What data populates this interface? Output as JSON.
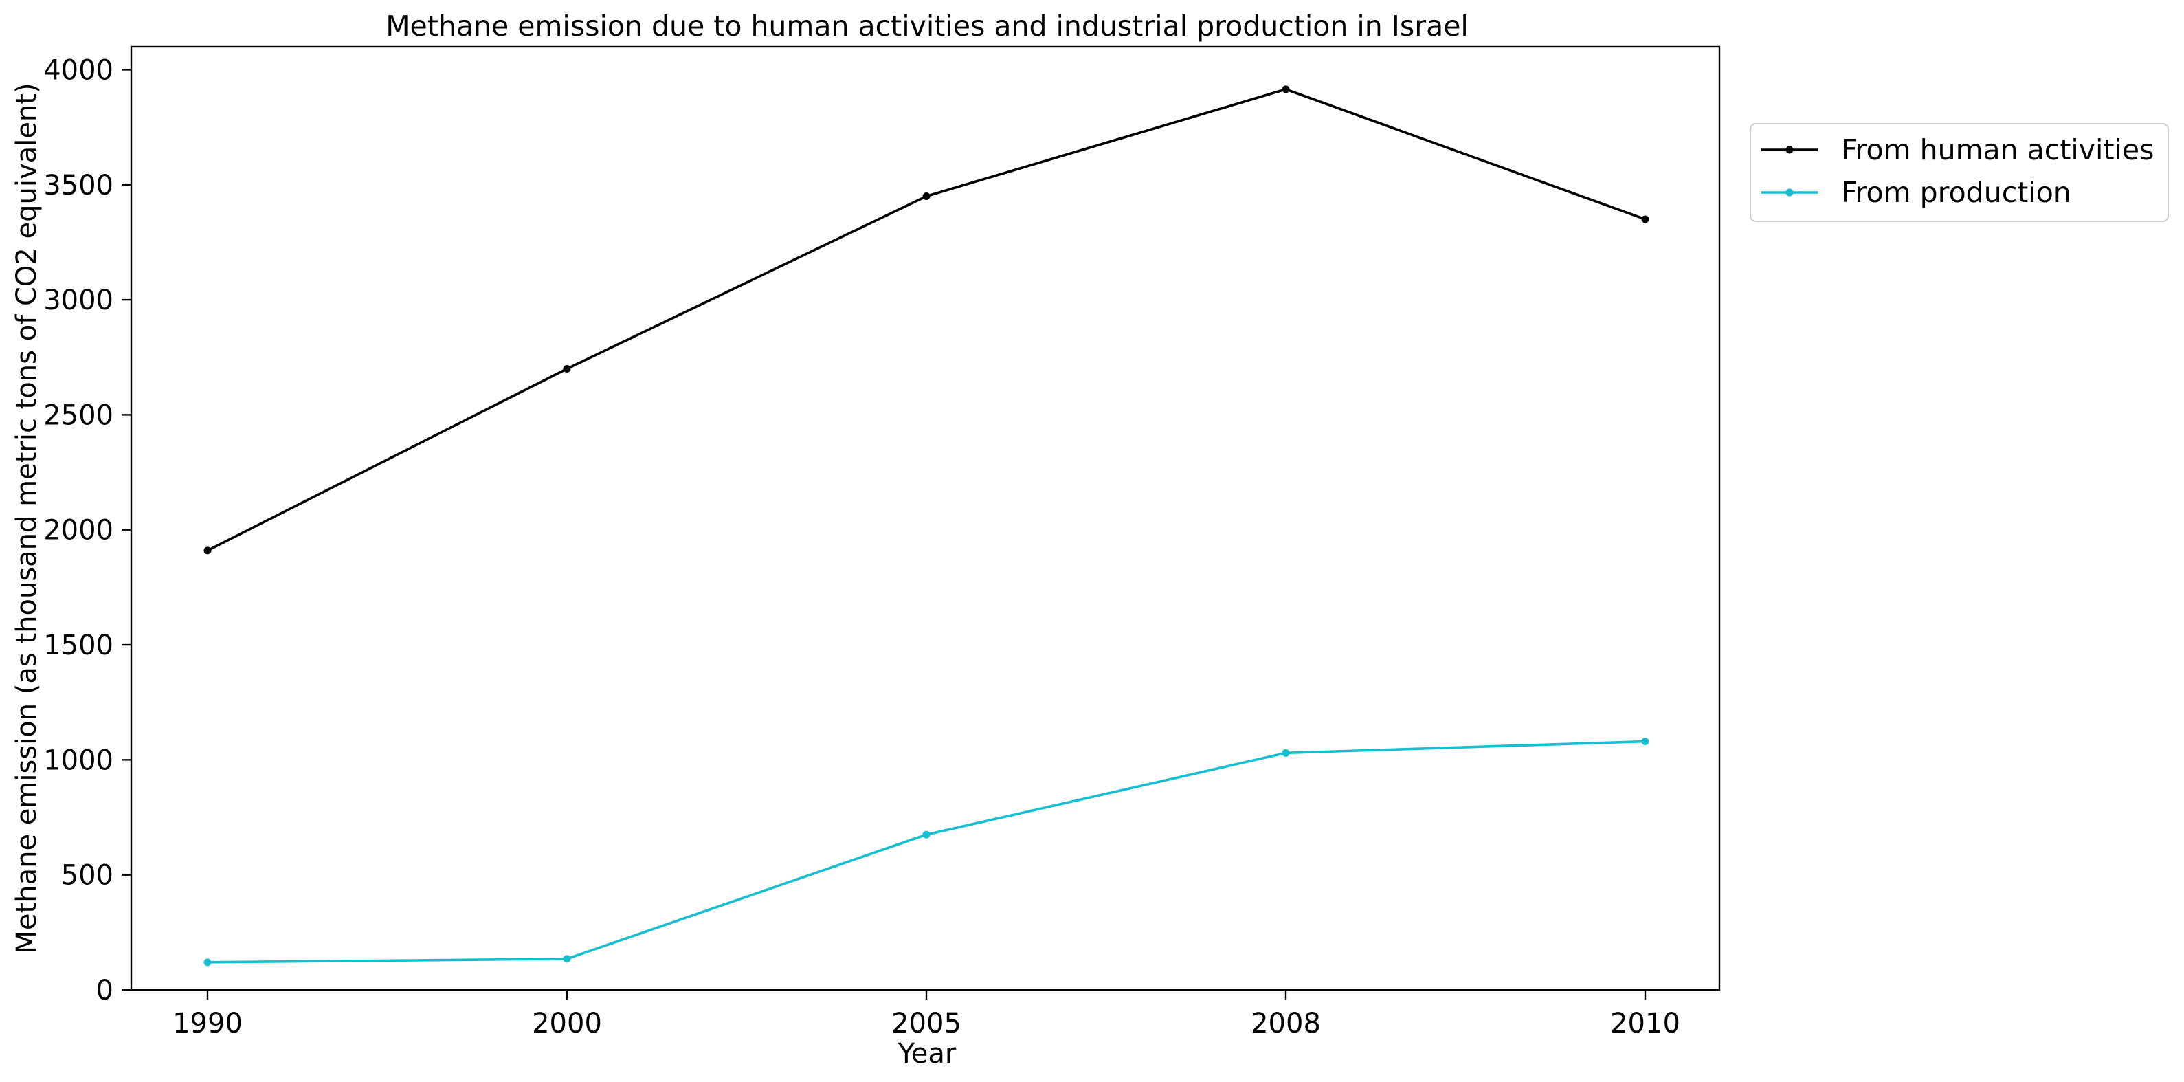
{
  "chart_data": {
    "type": "line",
    "title": "Methane emission due to human activities and industrial production in Israel",
    "xlabel": "Year",
    "ylabel": "Methane emission (as thousand metric tons of CO2 equivalent)",
    "categories": [
      "1990",
      "2000",
      "2005",
      "2008",
      "2010"
    ],
    "ylim": [
      0,
      4100
    ],
    "yticks": [
      0,
      500,
      1000,
      1500,
      2000,
      2500,
      3000,
      3500,
      4000
    ],
    "grid": false,
    "legend_position": "outside-right-top",
    "series": [
      {
        "name": "From human activities",
        "color": "#000000",
        "marker": "circle",
        "values": [
          1910,
          2700,
          3450,
          3915,
          3350
        ]
      },
      {
        "name": "From production",
        "color": "#17becf",
        "marker": "circle",
        "values": [
          120,
          135,
          675,
          1030,
          1080
        ]
      }
    ]
  }
}
